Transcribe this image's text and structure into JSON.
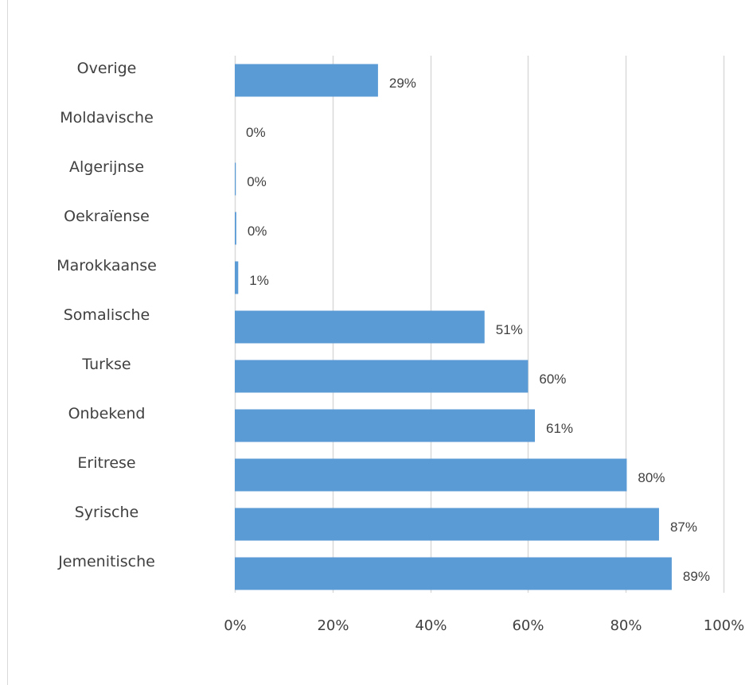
{
  "chart_data": {
    "type": "bar",
    "orientation": "horizontal",
    "categories": [
      "Overige",
      "Moldavische",
      "Algerijnse",
      "Oekraïense",
      "Marokkaanse",
      "Somalische",
      "Turkse",
      "Onbekend",
      "Eritrese",
      "Syrische",
      "Jemenitische"
    ],
    "values": [
      29.3,
      0,
      0.2,
      0.3,
      0.7,
      51.1,
      60.0,
      61.4,
      80.2,
      86.8,
      89.4
    ],
    "data_labels": [
      "29%",
      "0%",
      "0%",
      "0%",
      "1%",
      "51%",
      "60%",
      "61%",
      "80%",
      "87%",
      "89%"
    ],
    "xlim": [
      0,
      100
    ],
    "x_ticks": [
      "0%",
      "20%",
      "40%",
      "60%",
      "80%",
      "100%"
    ],
    "grid": true,
    "title": "",
    "xlabel": "",
    "ylabel": "",
    "bar_color": "#5b9bd5",
    "grid_color": "#d9d9d9"
  }
}
